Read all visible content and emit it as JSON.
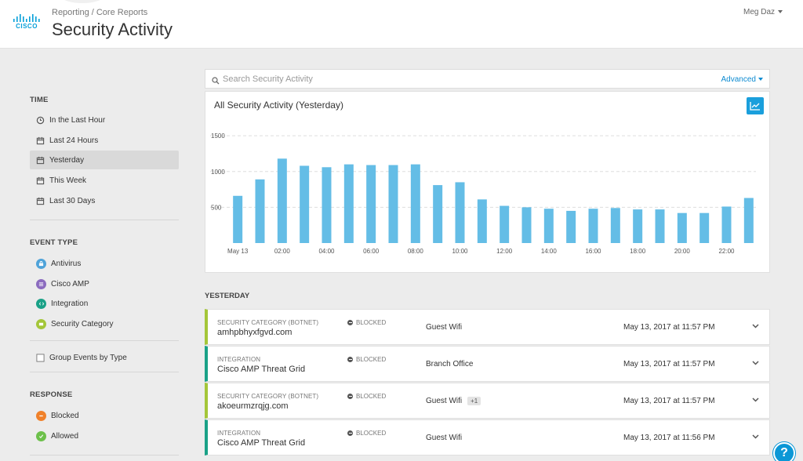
{
  "header": {
    "logo_text": "CISCO",
    "breadcrumb": "Reporting / Core Reports",
    "title": "Security Activity",
    "user": "Meg Daz"
  },
  "sidebar": {
    "time_heading": "TIME",
    "time_items": [
      {
        "label": "In the Last Hour",
        "icon": "clock-icon",
        "active": false
      },
      {
        "label": "Last 24 Hours",
        "icon": "calendar-icon",
        "active": false
      },
      {
        "label": "Yesterday",
        "icon": "calendar-icon",
        "active": true
      },
      {
        "label": "This Week",
        "icon": "calendar-icon",
        "active": false
      },
      {
        "label": "Last 30 Days",
        "icon": "calendar-icon",
        "active": false
      }
    ],
    "event_type_heading": "EVENT TYPE",
    "event_types": [
      {
        "label": "Antivirus",
        "icon": "antivirus-icon",
        "color": "#4fa3d9"
      },
      {
        "label": "Cisco AMP",
        "icon": "cisco-amp-icon",
        "color": "#8b6bbf"
      },
      {
        "label": "Integration",
        "icon": "integration-icon",
        "color": "#1aa187"
      },
      {
        "label": "Security Category",
        "icon": "security-category-icon",
        "color": "#a4c639"
      }
    ],
    "group_events_label": "Group Events by Type",
    "response_heading": "RESPONSE",
    "responses": [
      {
        "label": "Blocked",
        "icon": "blocked-icon",
        "color": "#f0812a"
      },
      {
        "label": "Allowed",
        "icon": "allowed-icon",
        "color": "#6cc04a"
      }
    ]
  },
  "search": {
    "placeholder": "Search Security Activity",
    "advanced_label": "Advanced"
  },
  "chart_data": {
    "type": "bar",
    "title": "All Security Activity (Yesterday)",
    "categories": [
      "May 13",
      "01:00",
      "02:00",
      "03:00",
      "04:00",
      "05:00",
      "06:00",
      "07:00",
      "08:00",
      "09:00",
      "10:00",
      "11:00",
      "12:00",
      "13:00",
      "14:00",
      "15:00",
      "16:00",
      "17:00",
      "18:00",
      "19:00",
      "20:00",
      "21:00",
      "22:00",
      "23:00"
    ],
    "tick_labels": [
      "May 13",
      "02:00",
      "04:00",
      "06:00",
      "08:00",
      "10:00",
      "12:00",
      "14:00",
      "16:00",
      "18:00",
      "20:00",
      "22:00"
    ],
    "values": [
      660,
      890,
      1180,
      1080,
      1060,
      1100,
      1090,
      1090,
      1100,
      810,
      850,
      610,
      520,
      500,
      480,
      450,
      480,
      490,
      470,
      470,
      420,
      420,
      510,
      630
    ],
    "yticks": [
      500,
      1000,
      1500
    ],
    "ylim": [
      0,
      1600
    ],
    "color": "#64bde6",
    "grid": true
  },
  "events": {
    "heading": "YESTERDAY",
    "rows": [
      {
        "category": "SECURITY CATEGORY (BOTNET)",
        "name": "amhpbhyxfgvd.com",
        "status": "BLOCKED",
        "location": "Guest Wifi",
        "badge": "",
        "time": "May 13, 2017 at 11:57 PM",
        "type": "security"
      },
      {
        "category": "INTEGRATION",
        "name": "Cisco AMP Threat Grid",
        "status": "BLOCKED",
        "location": "Branch Office",
        "badge": "",
        "time": "May 13, 2017 at 11:57 PM",
        "type": "integration"
      },
      {
        "category": "SECURITY CATEGORY (BOTNET)",
        "name": "akoeurmzrqjg.com",
        "status": "BLOCKED",
        "location": "Guest Wifi",
        "badge": "+1",
        "time": "May 13, 2017 at 11:57 PM",
        "type": "security"
      },
      {
        "category": "INTEGRATION",
        "name": "Cisco AMP Threat Grid",
        "status": "BLOCKED",
        "location": "Guest Wifi",
        "badge": "",
        "time": "May 13, 2017 at 11:56 PM",
        "type": "integration"
      }
    ]
  },
  "help_label": "?"
}
